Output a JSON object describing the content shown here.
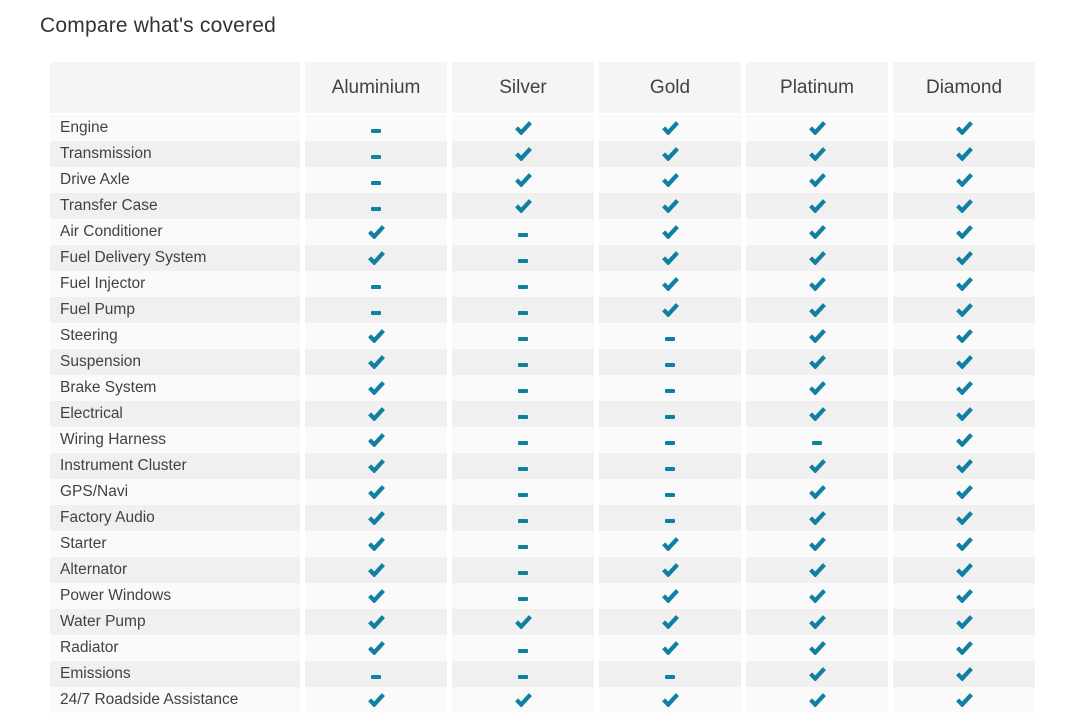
{
  "title": "Compare what's covered",
  "colors": {
    "accent": "#0f80a2",
    "header_bg": "#f5f5f5",
    "row_light": "#fafafa",
    "row_dark": "#f0f0f0",
    "text": "#424242",
    "title": "#333333"
  },
  "icons": {
    "covered": "check-icon",
    "not_covered": "dash-icon"
  },
  "table": {
    "columns": [
      "Aluminium",
      "Silver",
      "Gold",
      "Platinum",
      "Diamond"
    ],
    "rows": [
      {
        "label": "Engine",
        "covered": [
          false,
          true,
          true,
          true,
          true
        ]
      },
      {
        "label": "Transmission",
        "covered": [
          false,
          true,
          true,
          true,
          true
        ]
      },
      {
        "label": "Drive Axle",
        "covered": [
          false,
          true,
          true,
          true,
          true
        ]
      },
      {
        "label": "Transfer Case",
        "covered": [
          false,
          true,
          true,
          true,
          true
        ]
      },
      {
        "label": "Air Conditioner",
        "covered": [
          true,
          false,
          true,
          true,
          true
        ]
      },
      {
        "label": "Fuel Delivery System",
        "covered": [
          true,
          false,
          true,
          true,
          true
        ]
      },
      {
        "label": "Fuel Injector",
        "covered": [
          false,
          false,
          true,
          true,
          true
        ]
      },
      {
        "label": "Fuel Pump",
        "covered": [
          false,
          false,
          true,
          true,
          true
        ]
      },
      {
        "label": "Steering",
        "covered": [
          true,
          false,
          false,
          true,
          true
        ]
      },
      {
        "label": "Suspension",
        "covered": [
          true,
          false,
          false,
          true,
          true
        ]
      },
      {
        "label": "Brake System",
        "covered": [
          true,
          false,
          false,
          true,
          true
        ]
      },
      {
        "label": "Electrical",
        "covered": [
          true,
          false,
          false,
          true,
          true
        ]
      },
      {
        "label": "Wiring Harness",
        "covered": [
          true,
          false,
          false,
          false,
          true
        ]
      },
      {
        "label": "Instrument Cluster",
        "covered": [
          true,
          false,
          false,
          true,
          true
        ]
      },
      {
        "label": "GPS/Navi",
        "covered": [
          true,
          false,
          false,
          true,
          true
        ]
      },
      {
        "label": "Factory Audio",
        "covered": [
          true,
          false,
          false,
          true,
          true
        ]
      },
      {
        "label": "Starter",
        "covered": [
          true,
          false,
          true,
          true,
          true
        ]
      },
      {
        "label": "Alternator",
        "covered": [
          true,
          false,
          true,
          true,
          true
        ]
      },
      {
        "label": "Power Windows",
        "covered": [
          true,
          false,
          true,
          true,
          true
        ]
      },
      {
        "label": "Water Pump",
        "covered": [
          true,
          true,
          true,
          true,
          true
        ]
      },
      {
        "label": "Radiator",
        "covered": [
          true,
          false,
          true,
          true,
          true
        ]
      },
      {
        "label": "Emissions",
        "covered": [
          false,
          false,
          false,
          true,
          true
        ]
      },
      {
        "label": "24/7 Roadside Assistance",
        "covered": [
          true,
          true,
          true,
          true,
          true
        ]
      }
    ]
  }
}
